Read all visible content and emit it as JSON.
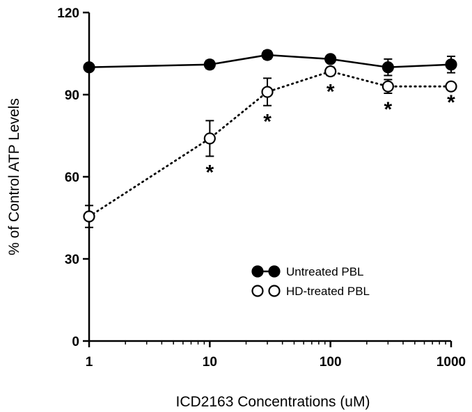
{
  "chart_data": {
    "type": "line",
    "xlabel": "ICD2163 Concentrations (uM)",
    "ylabel": "% of Control ATP Levels",
    "xscale": "log",
    "xlim": [
      1,
      1000
    ],
    "ylim": [
      0,
      120
    ],
    "xticks": [
      1,
      10,
      100,
      1000
    ],
    "xtick_labels": [
      "1",
      "10",
      "100",
      "1000"
    ],
    "yticks": [
      0,
      30,
      60,
      90,
      120
    ],
    "ytick_labels": [
      "0",
      "30",
      "60",
      "90",
      "120"
    ],
    "grid": false,
    "legend_position": "lower-right",
    "series": [
      {
        "name": "Untreated PBL",
        "marker": "filled-circle",
        "line_style": "solid",
        "x": [
          1,
          10,
          30,
          100,
          300,
          1000
        ],
        "y": [
          100,
          101,
          104.5,
          103,
          100,
          101
        ],
        "error": [
          0,
          1.5,
          1.5,
          1,
          3,
          3
        ]
      },
      {
        "name": "HD-treated PBL",
        "marker": "open-circle",
        "line_style": "dotted",
        "x": [
          1,
          10,
          30,
          100,
          300,
          1000
        ],
        "y": [
          45.5,
          74,
          91,
          98.5,
          93,
          93
        ],
        "error": [
          4,
          6.5,
          5,
          1.5,
          2.5,
          0
        ]
      }
    ],
    "significance_marks": [
      {
        "x": 10,
        "label": "*"
      },
      {
        "x": 30,
        "label": "*"
      },
      {
        "x": 100,
        "label": "*"
      },
      {
        "x": 300,
        "label": "*"
      },
      {
        "x": 1000,
        "label": "*"
      }
    ],
    "colors": {
      "line": "#000000",
      "background": "#ffffff"
    }
  }
}
